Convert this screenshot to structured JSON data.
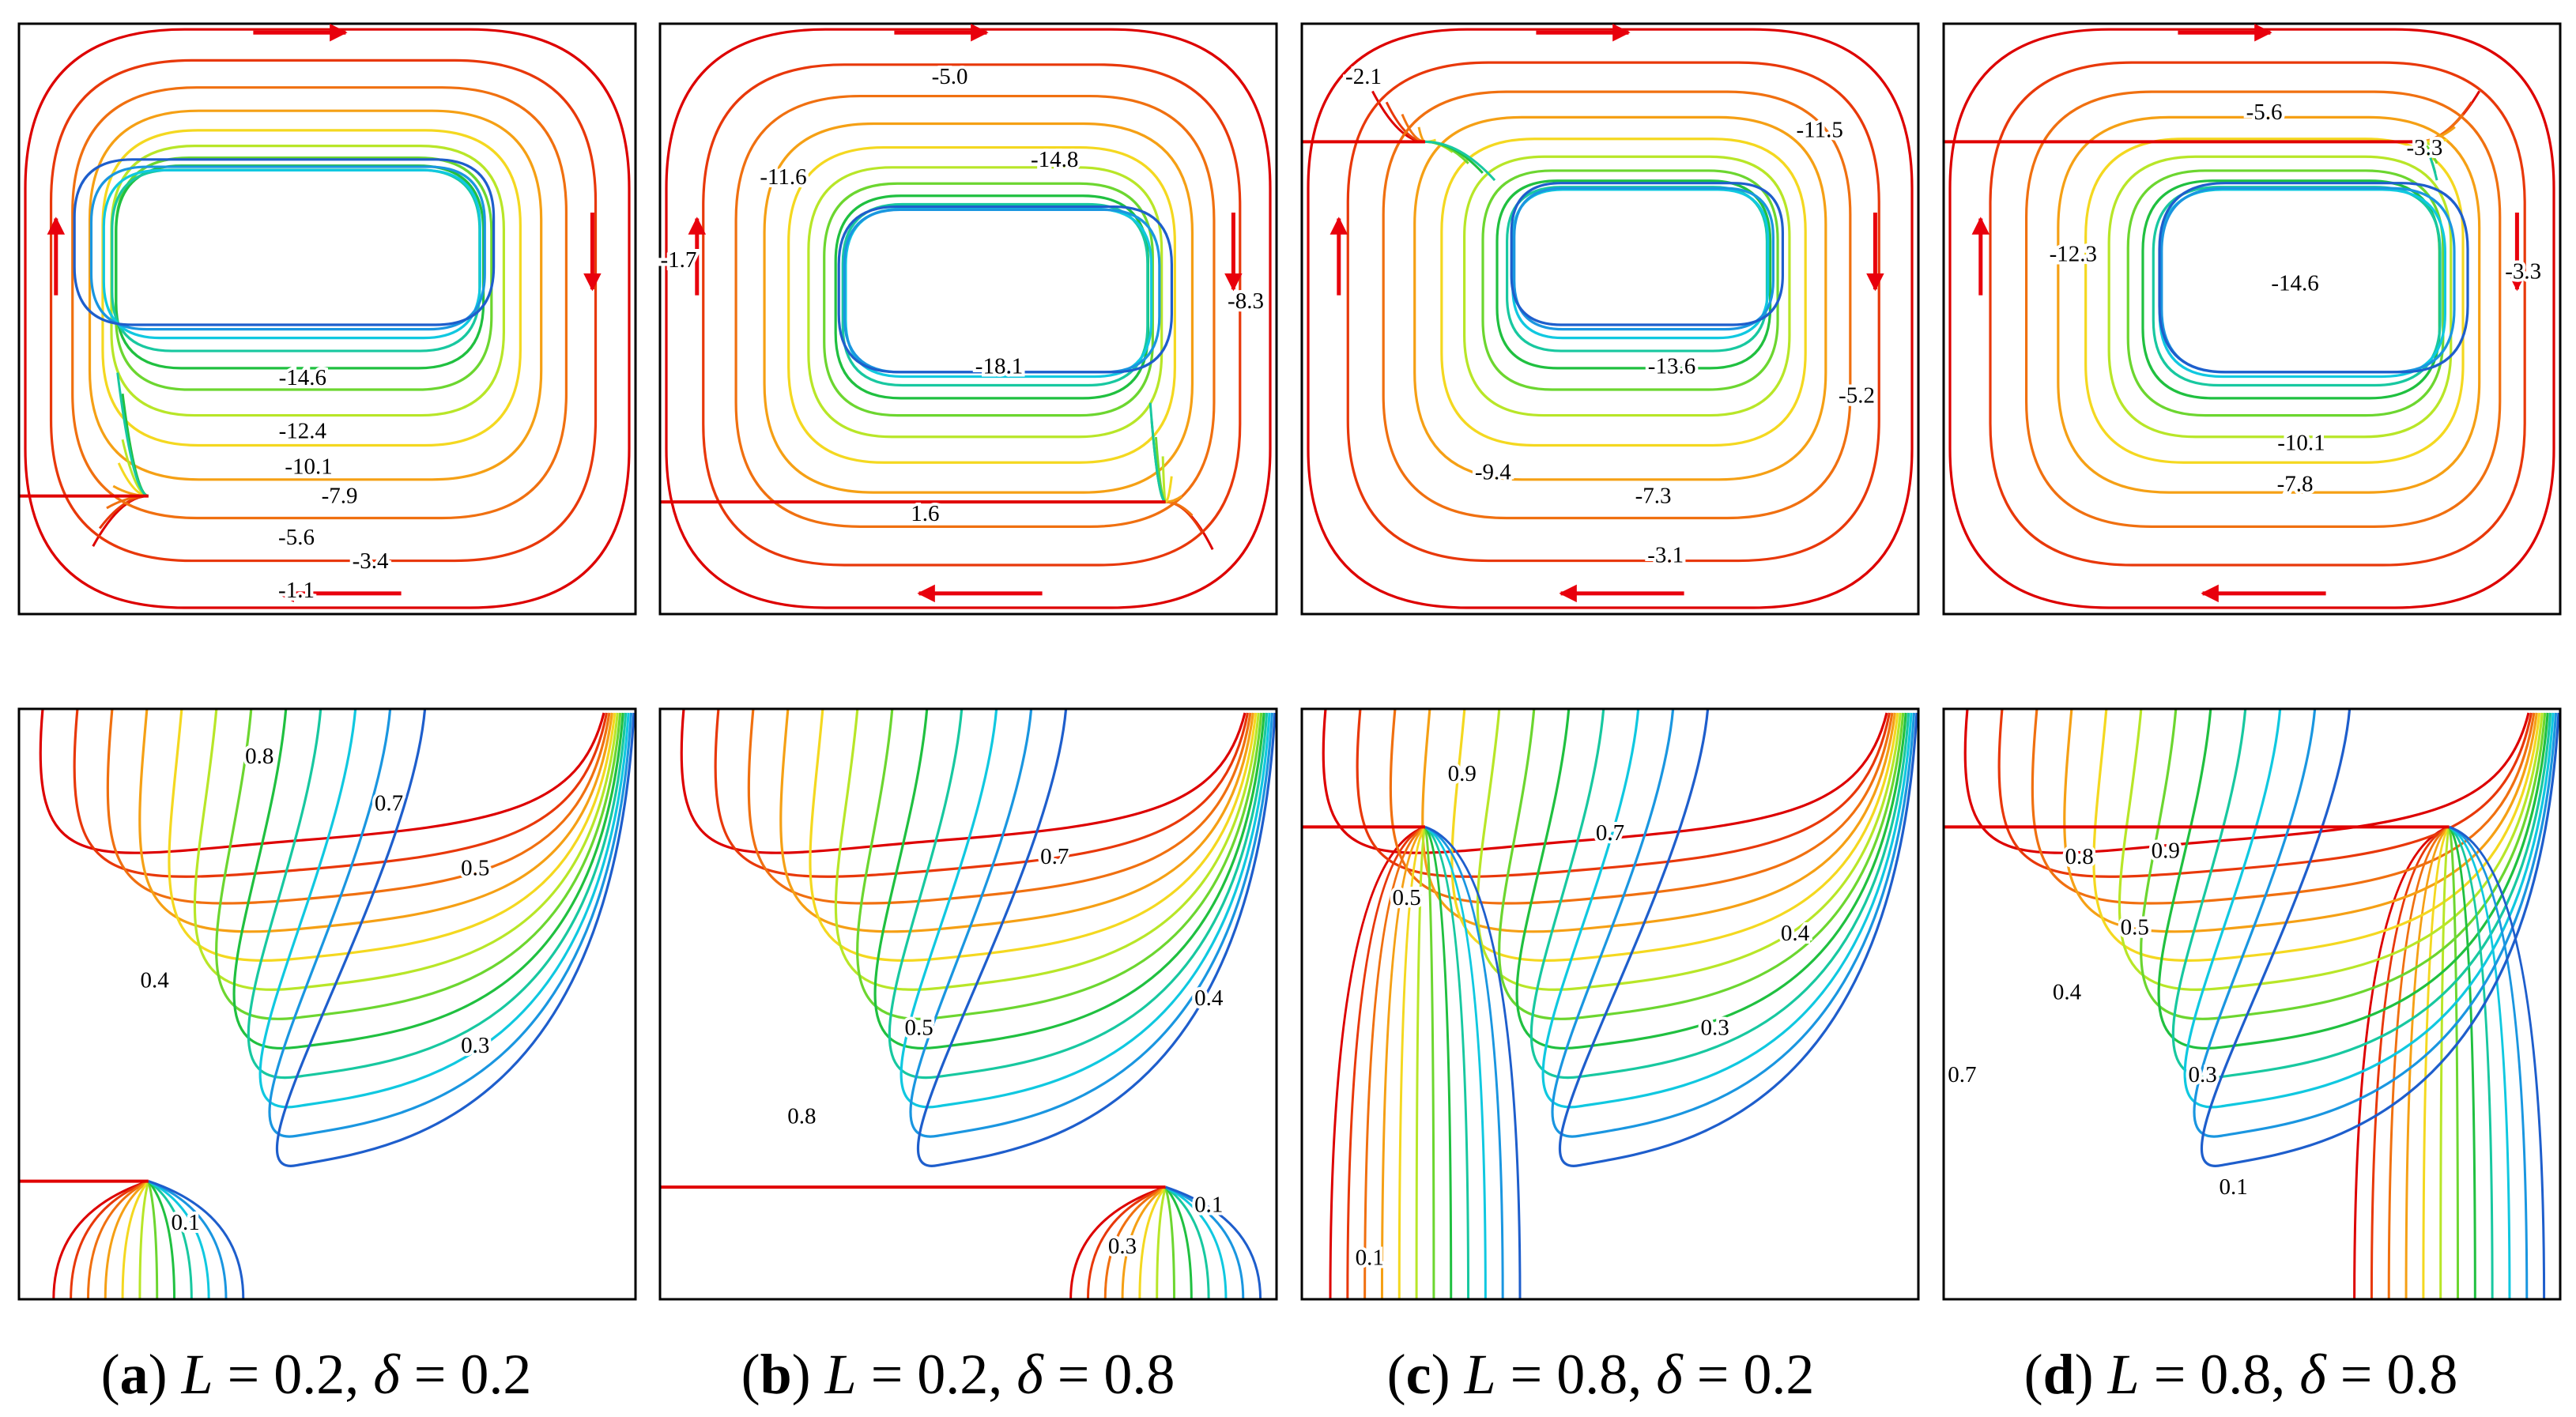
{
  "colors": {
    "levels": [
      "#dd0000",
      "#e8380a",
      "#f07010",
      "#f5a015",
      "#f4d820",
      "#b8e628",
      "#6cd630",
      "#20c040",
      "#18c8a0",
      "#10c8e0",
      "#1a96e0",
      "#1e5ecc"
    ],
    "arrow": "#e8000c",
    "frame": "#000000",
    "inlet_line": "#e00000"
  },
  "panels": [
    {
      "id": "a",
      "caption": {
        "letter": "a",
        "var1": "L",
        "val1": "= 0.2",
        "var2": "δ",
        "val2": "= 0.2"
      },
      "streamlines": {
        "labels": [
          "-14.6",
          "-12.4",
          "-10.1",
          "-7.9",
          "-5.6",
          "-3.4",
          "-1.1"
        ]
      },
      "isotherms": {
        "labels": [
          "0.8",
          "0.7",
          "0.5",
          "0.4",
          "0.3",
          "0.1"
        ]
      }
    },
    {
      "id": "b",
      "caption": {
        "letter": "b",
        "var1": "L",
        "val1": "= 0.2",
        "var2": "δ",
        "val2": "= 0.8"
      },
      "streamlines": {
        "labels": [
          "-5.0",
          "-11.6",
          "-14.8",
          "-1.7",
          "-8.3",
          "-18.1",
          "1.6"
        ]
      },
      "isotherms": {
        "labels": [
          "0.7",
          "0.5",
          "0.4",
          "0.8",
          "0.1",
          "0.3"
        ]
      }
    },
    {
      "id": "c",
      "caption": {
        "letter": "c",
        "var1": "L",
        "val1": "= 0.8",
        "var2": "δ",
        "val2": "= 0.2"
      },
      "streamlines": {
        "labels": [
          "-2.1",
          "-11.5",
          "-13.6",
          "-5.2",
          "-9.4",
          "-7.3",
          "-3.1"
        ]
      },
      "isotherms": {
        "labels": [
          "0.9",
          "0.7",
          "0.5",
          "0.4",
          "0.3",
          "0.1"
        ]
      }
    },
    {
      "id": "d",
      "caption": {
        "letter": "d",
        "var1": "L",
        "val1": "= 0.8",
        "var2": "δ",
        "val2": "= 0.8"
      },
      "streamlines": {
        "labels": [
          "-5.6",
          "-3.3",
          "-12.3",
          "-14.6",
          "-3.3",
          "-10.1",
          "-7.8"
        ]
      },
      "isotherms": {
        "labels": [
          "0.8",
          "0.9",
          "0.5",
          "0.4",
          "0.7",
          "0.3",
          "0.1"
        ]
      }
    }
  ]
}
